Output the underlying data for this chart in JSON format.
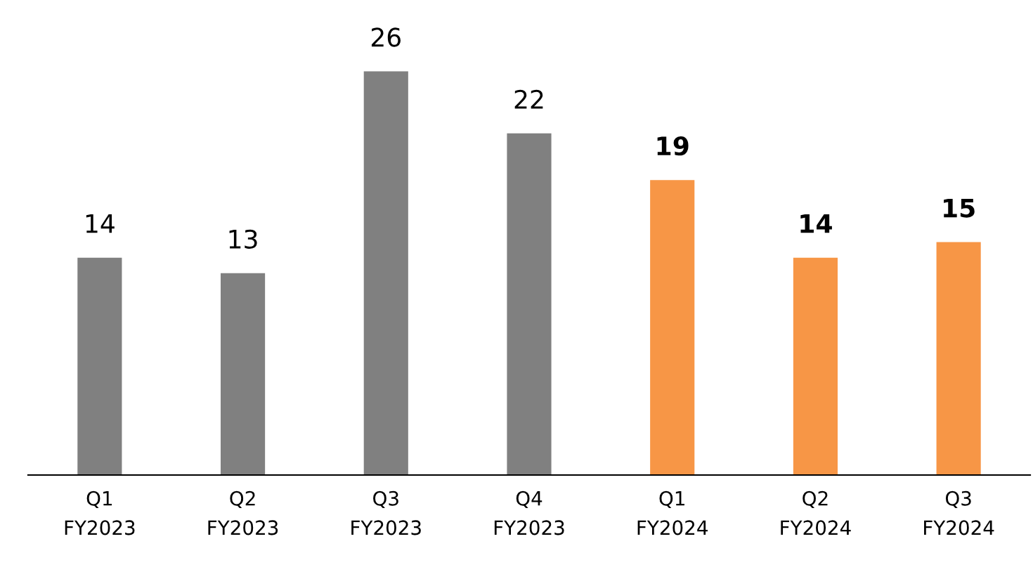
{
  "chart_data": {
    "type": "bar",
    "categories": [
      "Q1\nFY2023",
      "Q2\nFY2023",
      "Q3\nFY2023",
      "Q4\nFY2023",
      "Q1\nFY2024",
      "Q2\nFY2024",
      "Q3\nFY2024"
    ],
    "series": [
      {
        "color": "#808080",
        "values": [
          14,
          13,
          26,
          22,
          null,
          null,
          null
        ]
      },
      {
        "color": "#f79646",
        "values": [
          null,
          null,
          null,
          null,
          19,
          14,
          15
        ]
      }
    ],
    "data_labels": true,
    "grid": false,
    "legend": false
  }
}
